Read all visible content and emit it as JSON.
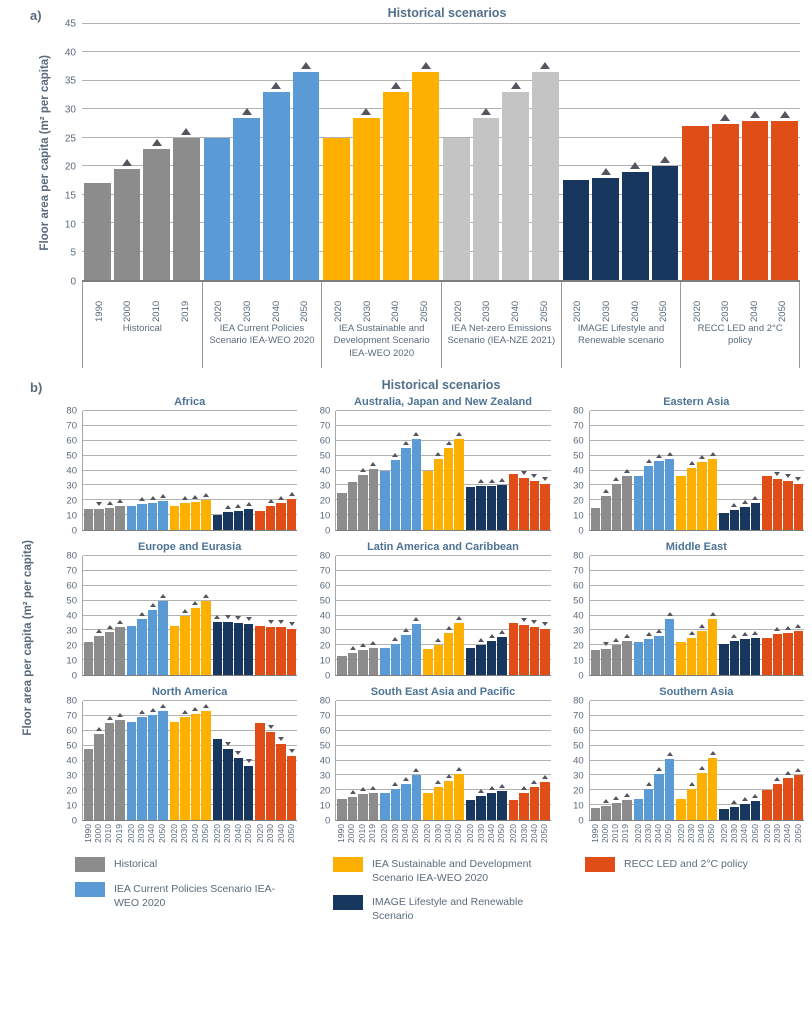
{
  "figure": {
    "panel_a": {
      "label": "a)"
    },
    "panel_b": {
      "label": "b)"
    }
  },
  "colors": {
    "historical": "#8C8C8C",
    "iea_cps": "#5B9BD5",
    "iea_sds": "#FDB000",
    "iea_nze": "#C4C4C4",
    "image": "#17375E",
    "recc": "#E04D16",
    "marker": "#55555F",
    "axis_text": "#5A6B7C",
    "title_text": "#53708A"
  },
  "legend": {
    "items": [
      {
        "series": "historical",
        "label": "Historical"
      },
      {
        "series": "iea_cps",
        "label": "IEA Current Policies Scenario IEA-WEO 2020"
      },
      {
        "series": "iea_sds",
        "label": "IEA Sustainable and Development Scenario IEA-WEO 2020"
      },
      {
        "series": "image",
        "label": "IMAGE Lifestyle and Renewable Scenario"
      },
      {
        "series": "recc",
        "label": "RECC LED and 2°C policy"
      }
    ]
  },
  "chart_data": {
    "panel_a": {
      "type": "bar",
      "title": "Historical scenarios",
      "ylabel": "Floor area per capita (m² per capita)",
      "ylim": [
        0,
        45
      ],
      "ytick_step": 5,
      "grid": true,
      "groups": [
        {
          "label": "Historical",
          "series": "historical",
          "years": [
            "1990",
            "2000",
            "2010",
            "2019"
          ],
          "values": [
            17,
            19.5,
            23,
            25
          ],
          "markers": [
            null,
            "up",
            "up",
            "up"
          ]
        },
        {
          "label": "IEA Current Policies Scenario IEA-WEO 2020",
          "series": "iea_cps",
          "years": [
            "2020",
            "2030",
            "2040",
            "2050"
          ],
          "values": [
            25,
            28.5,
            33,
            36.5
          ],
          "markers": [
            null,
            "up",
            "up",
            "up"
          ]
        },
        {
          "label": "IEA Sustainable and Development Scenario IEA-WEO 2020",
          "series": "iea_sds",
          "years": [
            "2020",
            "2030",
            "2040",
            "2050"
          ],
          "values": [
            25,
            28.5,
            33,
            36.5
          ],
          "markers": [
            null,
            "up",
            "up",
            "up"
          ]
        },
        {
          "label": "IEA Net-zero Emissions Scenario (IEA-NZE 2021)",
          "series": "iea_nze",
          "years": [
            "2020",
            "2030",
            "2040",
            "2050"
          ],
          "values": [
            25,
            28.5,
            33,
            36.5
          ],
          "markers": [
            null,
            "up",
            "up",
            "up"
          ]
        },
        {
          "label": "IMAGE Lifestyle and Renewable scenario",
          "series": "image",
          "years": [
            "2020",
            "2030",
            "2040",
            "2050"
          ],
          "values": [
            17.5,
            18,
            19,
            20
          ],
          "markers": [
            null,
            "up",
            "up",
            "up"
          ]
        },
        {
          "label": "RECC LED and 2°C policy",
          "series": "recc",
          "years": [
            "2020",
            "2030",
            "2040",
            "2050"
          ],
          "values": [
            27,
            27.5,
            28,
            28
          ],
          "markers": [
            null,
            "up",
            "up",
            "up"
          ]
        }
      ]
    },
    "panel_b": {
      "type": "bar",
      "title": "Historical scenarios",
      "ylabel": "Floor area per capita (m² per capita)",
      "ylim": [
        0,
        80
      ],
      "ytick_step": 10,
      "grid": true,
      "hist_years": [
        "1990",
        "2000",
        "2010",
        "2019"
      ],
      "scen_years": [
        "2020",
        "2030",
        "2040",
        "2050"
      ],
      "series_order": [
        "historical",
        "iea_cps",
        "iea_sds",
        "image",
        "recc"
      ],
      "regions": [
        {
          "title": "Africa",
          "values": {
            "historical": [
              14,
              14,
              15,
              16.5
            ],
            "iea_cps": [
              16,
              17.5,
              18.5,
              19.5
            ],
            "iea_sds": [
              16.5,
              18,
              19,
              20.5
            ],
            "image": [
              10,
              12,
              13,
              14
            ],
            "recc": [
              12.5,
              16,
              18.5,
              21
            ]
          },
          "markers": {
            "historical": [
              null,
              "down",
              "up",
              "up"
            ],
            "iea_cps": [
              null,
              "up",
              "up",
              "up"
            ],
            "iea_sds": [
              null,
              "up",
              "up",
              "up"
            ],
            "image": [
              null,
              "up",
              "up",
              "up"
            ],
            "recc": [
              null,
              "up",
              "up",
              "up"
            ]
          }
        },
        {
          "title": "Australia, Japan and New Zealand",
          "values": {
            "historical": [
              25,
              32,
              37,
              41
            ],
            "iea_cps": [
              40,
              47,
              55,
              61
            ],
            "iea_sds": [
              40,
              48,
              55,
              61
            ],
            "image": [
              29,
              29.5,
              29.5,
              30
            ],
            "recc": [
              37.5,
              35,
              33,
              31
            ]
          },
          "markers": {
            "historical": [
              null,
              null,
              "up",
              "up"
            ],
            "iea_cps": [
              null,
              "up",
              "up",
              "up"
            ],
            "iea_sds": [
              null,
              "up",
              "up",
              "up"
            ],
            "image": [
              null,
              "up",
              "up",
              "up"
            ],
            "recc": [
              null,
              "down",
              "down",
              "down"
            ]
          }
        },
        {
          "title": "Eastern Asia",
          "values": {
            "historical": [
              15,
              23,
              31,
              36
            ],
            "iea_cps": [
              36,
              43,
              46.5,
              48
            ],
            "iea_sds": [
              36,
              42,
              46,
              48
            ],
            "image": [
              11.5,
              13.5,
              15.5,
              18
            ],
            "recc": [
              36,
              34.5,
              33,
              31
            ]
          },
          "markers": {
            "historical": [
              null,
              "up",
              "up",
              "up"
            ],
            "iea_cps": [
              null,
              "up",
              "up",
              "up"
            ],
            "iea_sds": [
              null,
              "up",
              "up",
              "up"
            ],
            "image": [
              null,
              "up",
              "up",
              "up"
            ],
            "recc": [
              null,
              "down",
              "down",
              "down"
            ]
          }
        },
        {
          "title": "Europe and Eurasia",
          "values": {
            "historical": [
              22.5,
              26,
              29,
              32
            ],
            "iea_cps": [
              33,
              38,
              44,
              50
            ],
            "iea_sds": [
              33,
              40,
              45,
              50
            ],
            "image": [
              35.5,
              35.5,
              35,
              34.5
            ],
            "recc": [
              33,
              32.5,
              32,
              31
            ]
          },
          "markers": {
            "historical": [
              null,
              "up",
              "up",
              "up"
            ],
            "iea_cps": [
              null,
              "up",
              "up",
              "up"
            ],
            "iea_sds": [
              null,
              "up",
              "up",
              "up"
            ],
            "image": [
              "up",
              "down",
              "down",
              "down"
            ],
            "recc": [
              null,
              "down",
              "down",
              "down"
            ]
          }
        },
        {
          "title": "Latin America and Caribbean",
          "values": {
            "historical": [
              13,
              15,
              17,
              18.5
            ],
            "iea_cps": [
              18.5,
              21,
              27,
              34
            ],
            "iea_sds": [
              17.5,
              20.5,
              28,
              35
            ],
            "image": [
              18,
              20.5,
              23,
              25.5
            ],
            "recc": [
              35,
              33.5,
              32,
              31
            ]
          },
          "markers": {
            "historical": [
              null,
              "up",
              "up",
              "up"
            ],
            "iea_cps": [
              null,
              "up",
              "up",
              "up"
            ],
            "iea_sds": [
              null,
              "up",
              "up",
              "up"
            ],
            "image": [
              null,
              "up",
              "up",
              "up"
            ],
            "recc": [
              null,
              "down",
              "down",
              "down"
            ]
          }
        },
        {
          "title": "Middle East",
          "values": {
            "historical": [
              17,
              17.5,
              20,
              23
            ],
            "iea_cps": [
              22,
              24,
              26.5,
              38
            ],
            "iea_sds": [
              22,
              25,
              29.5,
              38
            ],
            "image": [
              21,
              23,
              24,
              25
            ],
            "recc": [
              25,
              27.5,
              28.5,
              29.5
            ]
          },
          "markers": {
            "historical": [
              null,
              "down",
              "up",
              "up"
            ],
            "iea_cps": [
              null,
              "up",
              "up",
              "up"
            ],
            "iea_sds": [
              null,
              "up",
              "up",
              "up"
            ],
            "image": [
              null,
              "up",
              "up",
              "up"
            ],
            "recc": [
              null,
              "up",
              "up",
              "up"
            ]
          }
        },
        {
          "title": "North America",
          "values": {
            "historical": [
              48,
              58,
              65,
              67
            ],
            "iea_cps": [
              66,
              69,
              70.5,
              73
            ],
            "iea_sds": [
              66,
              69,
              71,
              73
            ],
            "image": [
              54.5,
              48,
              42,
              36.5
            ],
            "recc": [
              65,
              59,
              51,
              43
            ]
          },
          "markers": {
            "historical": [
              null,
              "up",
              "up",
              "up"
            ],
            "iea_cps": [
              null,
              "up",
              "up",
              "up"
            ],
            "iea_sds": [
              null,
              "up",
              "up",
              "up"
            ],
            "image": [
              null,
              "down",
              "down",
              "down"
            ],
            "recc": [
              null,
              "down",
              "down",
              "down"
            ]
          }
        },
        {
          "title": "South East Asia and Pacific",
          "values": {
            "historical": [
              14,
              15.5,
              17.5,
              18.5
            ],
            "iea_cps": [
              18.5,
              21,
              24.5,
              30.5
            ],
            "iea_sds": [
              18.5,
              22,
              26.5,
              31
            ],
            "image": [
              13.5,
              16,
              18,
              19.5
            ],
            "recc": [
              13.5,
              18.5,
              22.5,
              25.5
            ]
          },
          "markers": {
            "historical": [
              null,
              "up",
              "up",
              "up"
            ],
            "iea_cps": [
              null,
              "up",
              "up",
              "up"
            ],
            "iea_sds": [
              null,
              "up",
              "up",
              "up"
            ],
            "image": [
              null,
              "up",
              "up",
              "up"
            ],
            "recc": [
              null,
              "up",
              "up",
              "up"
            ]
          }
        },
        {
          "title": "Southern Asia",
          "values": {
            "historical": [
              8,
              9.5,
              11.5,
              13.5
            ],
            "iea_cps": [
              14,
              21,
              31,
              41
            ],
            "iea_sds": [
              14,
              21,
              31.5,
              42
            ],
            "image": [
              7.5,
              9,
              10.5,
              12.5
            ],
            "recc": [
              20.5,
              24,
              28,
              30
            ]
          },
          "markers": {
            "historical": [
              null,
              "up",
              "up",
              "up"
            ],
            "iea_cps": [
              null,
              "up",
              "up",
              "up"
            ],
            "iea_sds": [
              null,
              "up",
              "up",
              "up"
            ],
            "image": [
              null,
              "up",
              "up",
              "up"
            ],
            "recc": [
              null,
              "up",
              "up",
              "up"
            ]
          }
        }
      ]
    }
  }
}
